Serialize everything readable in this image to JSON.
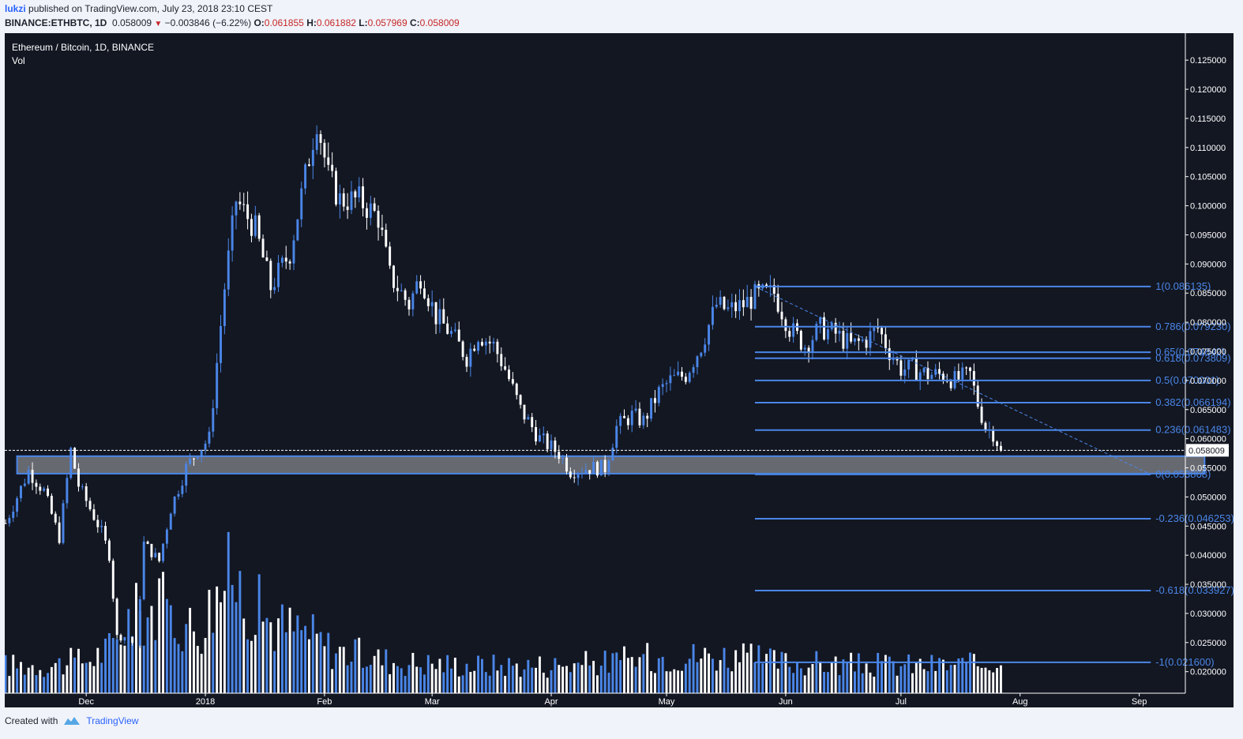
{
  "header": {
    "user": "lukzi",
    "published_text": "published on TradingView.com, July 23, 2018 23:10 CEST",
    "symbol": "BINANCE:ETHBTC, 1D",
    "price": "0.058009",
    "change": "−0.003846 (−6.22%)",
    "o_label": "O:",
    "o_value": "0.061855",
    "h_label": "H:",
    "h_value": "0.061882",
    "l_label": "L:",
    "l_value": "0.057969",
    "c_label": "C:",
    "c_value": "0.058009"
  },
  "legend": {
    "title": "Ethereum / Bitcoin, 1D, BINANCE",
    "vol": "Vol"
  },
  "footer": {
    "created_with": "Created with",
    "brand": "TradingView"
  },
  "colors": {
    "background": "#131722",
    "up": "#4a86e8",
    "down": "#ffffff",
    "fib": "#4a86e8",
    "zone_fill": "#6b6e75",
    "axis_text": "#ffffff"
  },
  "chart_data": {
    "type": "candlestick",
    "title": "Ethereum / Bitcoin, 1D, BINANCE",
    "y_scale": "linear",
    "ylim": [
      0.0163,
      0.1295
    ],
    "y_ticks": [
      "0.020000",
      "0.025000",
      "0.030000",
      "0.035000",
      "0.040000",
      "0.045000",
      "0.050000",
      "0.055000",
      "0.060000",
      "0.065000",
      "0.070000",
      "0.075000",
      "0.080000",
      "0.085000",
      "0.090000",
      "0.095000",
      "0.100000",
      "0.105000",
      "0.110000",
      "0.115000",
      "0.120000",
      "0.125000"
    ],
    "x_ticks": [
      "Dec",
      "2018",
      "Feb",
      "Mar",
      "Apr",
      "May",
      "Jun",
      "Jul",
      "Aug",
      "Sep"
    ],
    "x_range_days": [
      -52,
      255
    ],
    "tick_days": [
      -31,
      0,
      31,
      59,
      90,
      120,
      151,
      181,
      212,
      243
    ],
    "last_price": "0.058009",
    "path_anchors": [
      [
        -52,
        0.0455
      ],
      [
        -46,
        0.0545
      ],
      [
        -42,
        0.051
      ],
      [
        -38,
        0.043
      ],
      [
        -35,
        0.058
      ],
      [
        -33,
        0.052
      ],
      [
        -27,
        0.044
      ],
      [
        -25,
        0.04
      ],
      [
        -23,
        0.026
      ],
      [
        -20,
        0.026
      ],
      [
        -18,
        0.024
      ],
      [
        -16,
        0.042
      ],
      [
        -12,
        0.039
      ],
      [
        -9,
        0.048
      ],
      [
        -5,
        0.055
      ],
      [
        -2,
        0.058
      ],
      [
        1,
        0.06
      ],
      [
        5,
        0.086
      ],
      [
        8,
        0.101
      ],
      [
        13,
        0.096
      ],
      [
        17,
        0.086
      ],
      [
        22,
        0.092
      ],
      [
        26,
        0.105
      ],
      [
        29,
        0.115
      ],
      [
        32,
        0.105
      ],
      [
        35,
        0.101
      ],
      [
        40,
        0.101
      ],
      [
        45,
        0.098
      ],
      [
        48,
        0.088
      ],
      [
        53,
        0.083
      ],
      [
        56,
        0.088
      ],
      [
        60,
        0.081
      ],
      [
        64,
        0.078
      ],
      [
        68,
        0.074
      ],
      [
        71,
        0.078
      ],
      [
        75,
        0.076
      ],
      [
        78,
        0.072
      ],
      [
        82,
        0.065
      ],
      [
        87,
        0.06
      ],
      [
        92,
        0.0575
      ],
      [
        95,
        0.0545
      ],
      [
        100,
        0.055
      ],
      [
        104,
        0.055
      ],
      [
        107,
        0.062
      ],
      [
        111,
        0.064
      ],
      [
        114,
        0.063
      ],
      [
        118,
        0.068
      ],
      [
        121,
        0.07
      ],
      [
        125,
        0.071
      ],
      [
        129,
        0.076
      ],
      [
        133,
        0.083
      ],
      [
        136,
        0.082
      ],
      [
        140,
        0.083
      ],
      [
        143,
        0.0845
      ],
      [
        148,
        0.085
      ],
      [
        152,
        0.079
      ],
      [
        156,
        0.076
      ],
      [
        160,
        0.079
      ],
      [
        164,
        0.078
      ],
      [
        168,
        0.076
      ],
      [
        172,
        0.077
      ],
      [
        175,
        0.079
      ],
      [
        178,
        0.075
      ],
      [
        181,
        0.072
      ],
      [
        184,
        0.072
      ],
      [
        188,
        0.071
      ],
      [
        192,
        0.071
      ],
      [
        195,
        0.07
      ],
      [
        199,
        0.071
      ],
      [
        201,
        0.066
      ],
      [
        203,
        0.062
      ],
      [
        205,
        0.061
      ],
      [
        207,
        0.058
      ]
    ],
    "volume_profile": [
      [
        -52,
        0.9
      ],
      [
        -40,
        0.9
      ],
      [
        -30,
        1.1
      ],
      [
        -24,
        1.5
      ],
      [
        -20,
        2.4
      ],
      [
        -12,
        2.8
      ],
      [
        -2,
        2.0
      ],
      [
        3,
        3.2
      ],
      [
        7,
        3.8
      ],
      [
        11,
        3.0
      ],
      [
        18,
        2.2
      ],
      [
        26,
        2.0
      ],
      [
        33,
        1.4
      ],
      [
        50,
        1.0
      ],
      [
        70,
        0.9
      ],
      [
        90,
        0.9
      ],
      [
        105,
        1.0
      ],
      [
        120,
        1.2
      ],
      [
        135,
        1.2
      ],
      [
        150,
        1.0
      ],
      [
        170,
        0.9
      ],
      [
        200,
        0.9
      ],
      [
        207,
        1.1
      ]
    ],
    "series": [
      {
        "name": "Vol",
        "type": "volume"
      }
    ],
    "support_zone": {
      "from_day": -49,
      "to_day": 260,
      "y_low": 0.054,
      "y_high": 0.057
    },
    "fib_retracement": {
      "start_day": 143,
      "end_day": 246,
      "trend_from": [
        143,
        0.086135
      ],
      "trend_to": [
        246,
        0.053868
      ],
      "levels": [
        {
          "label": "1(0.086135)",
          "value": 0.086135
        },
        {
          "label": "0.786(0.079230)",
          "value": 0.07923
        },
        {
          "label": "0.65(0.074842)",
          "value": 0.074842
        },
        {
          "label": "0.618(0.073809)",
          "value": 0.073809
        },
        {
          "label": "0.5(0.070001)",
          "value": 0.070001
        },
        {
          "label": "0.382(0.066194)",
          "value": 0.066194
        },
        {
          "label": "0.236(0.061483)",
          "value": 0.061483
        },
        {
          "label": "0(0.053868)",
          "value": 0.053868
        },
        {
          "label": "-0.236(0.046253)",
          "value": 0.046253
        },
        {
          "label": "-0.618(0.033927)",
          "value": 0.033927
        },
        {
          "label": "-1(0.021600)",
          "value": 0.0216
        }
      ]
    }
  }
}
